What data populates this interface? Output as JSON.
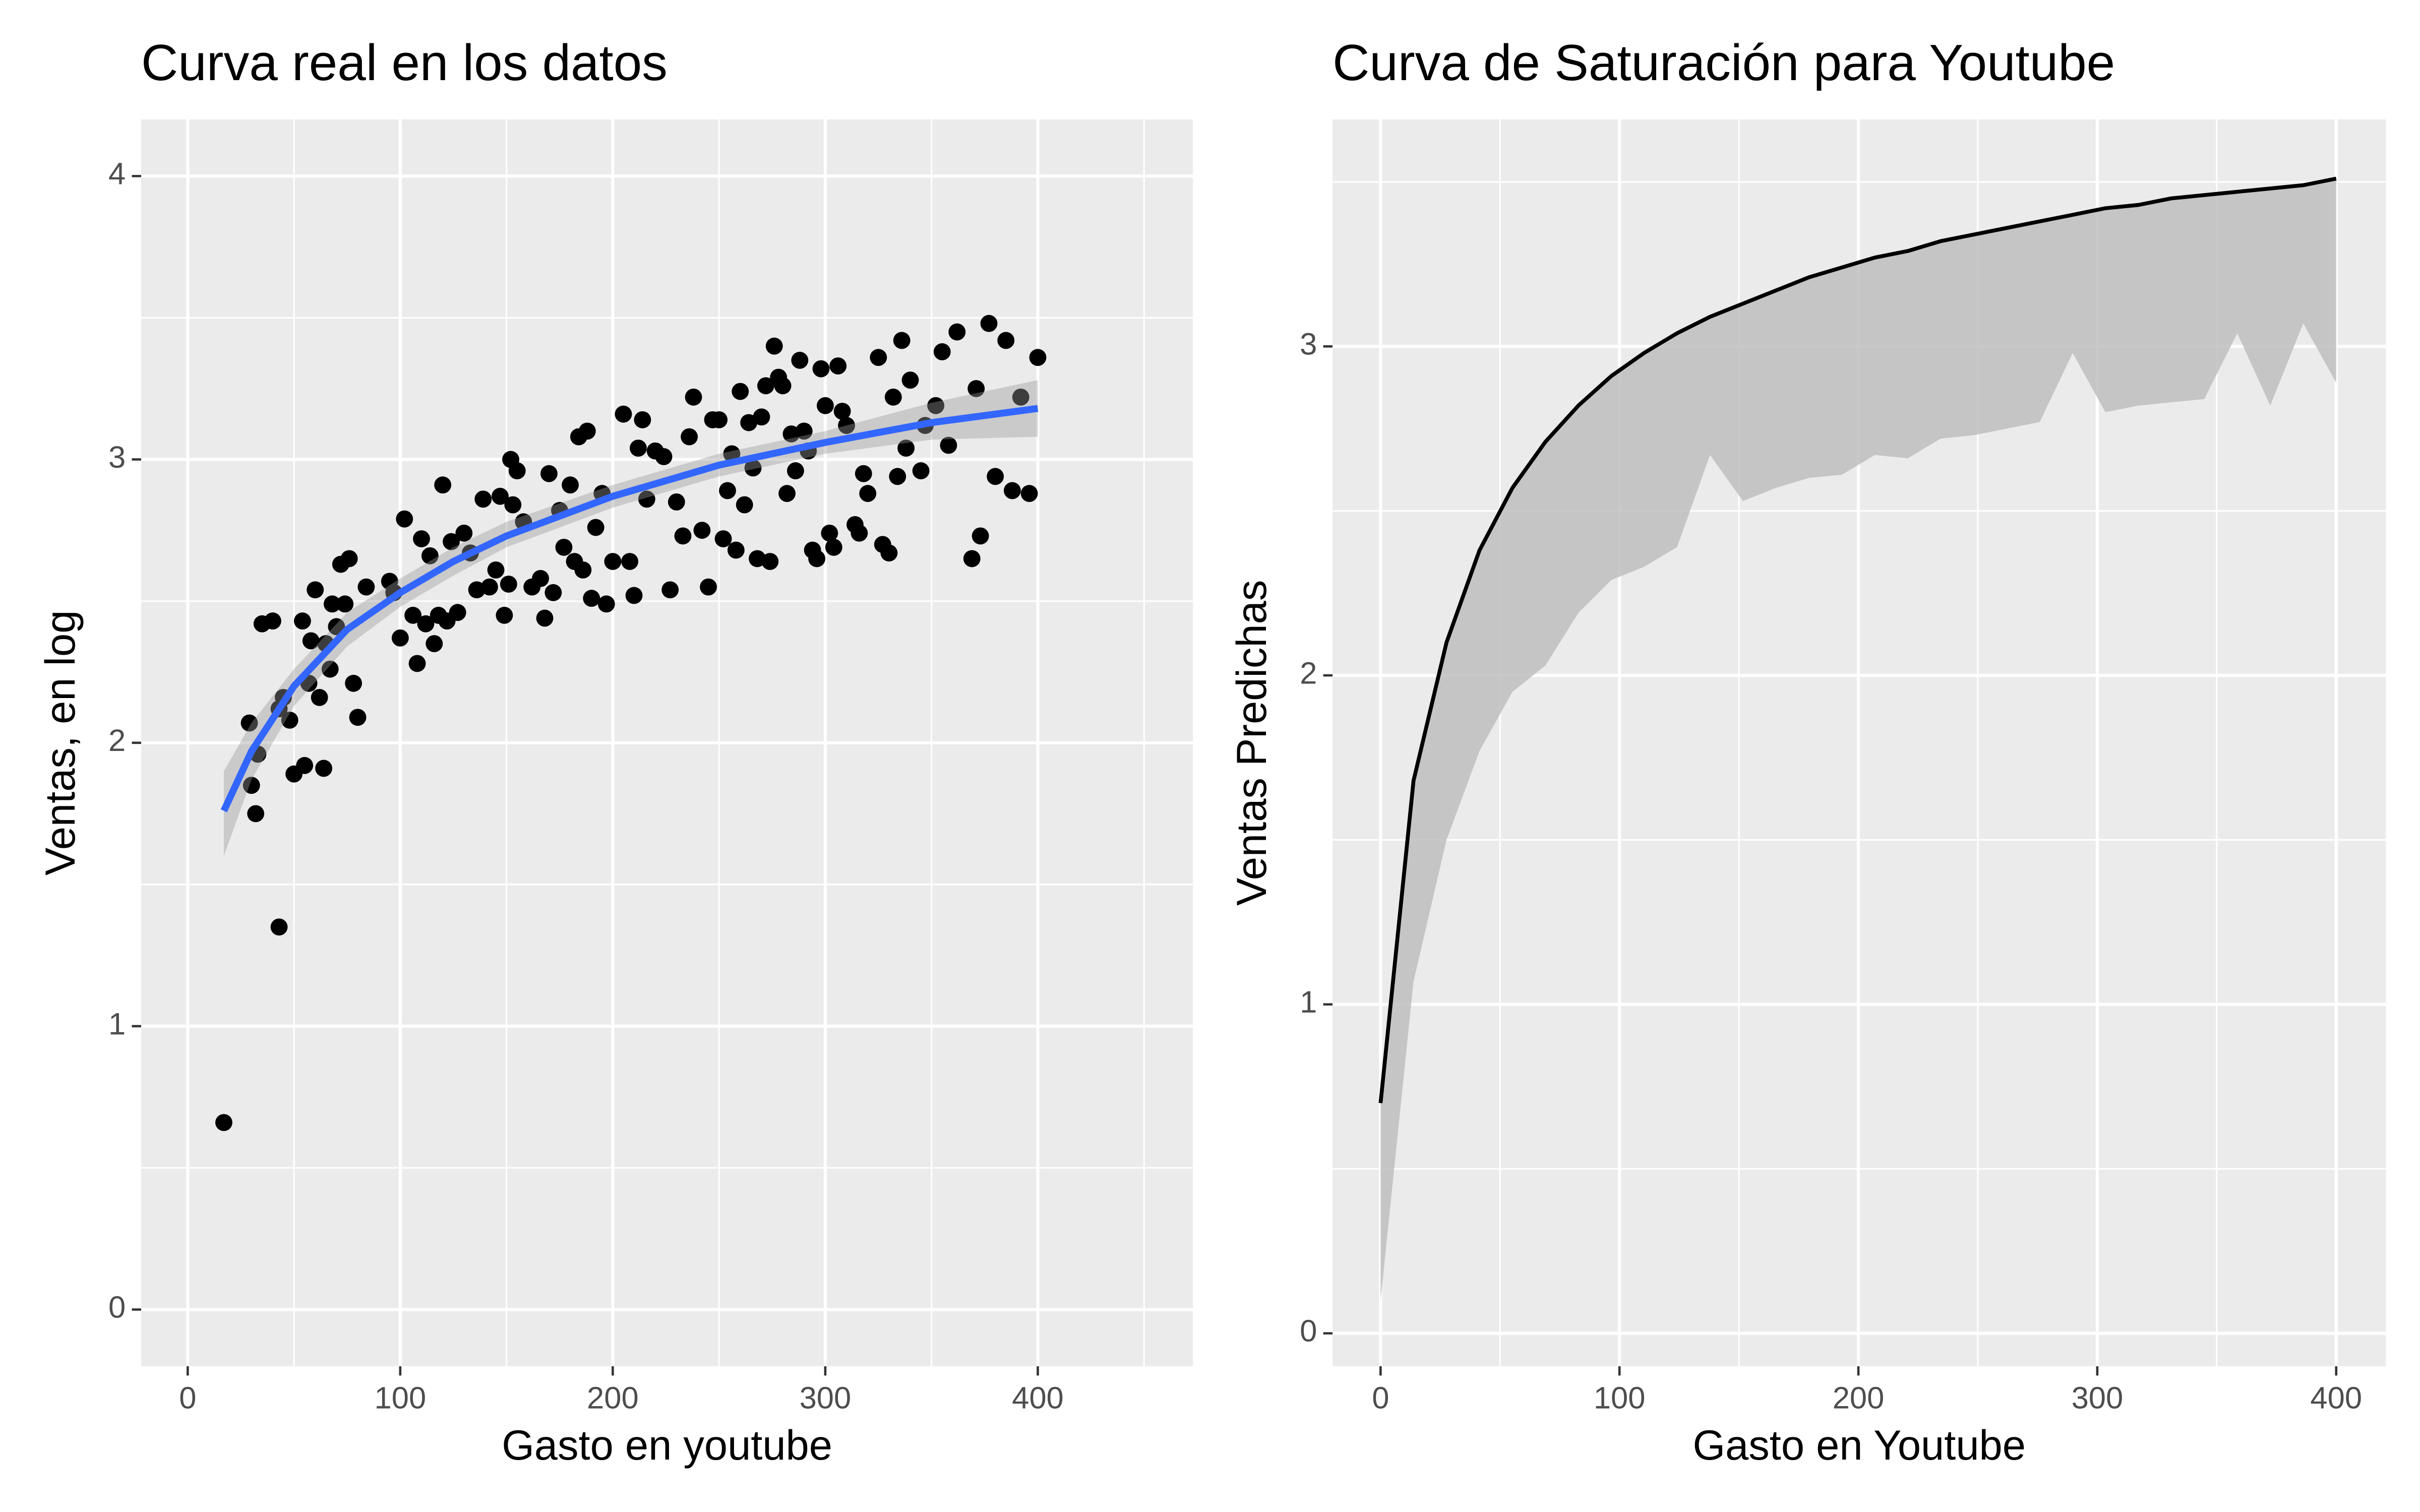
{
  "chart_data": [
    {
      "type": "scatter",
      "title": "Curva real en los datos",
      "x_label": "Gasto en youtube",
      "y_label": "Ventas, en log",
      "xlim": [
        -21.9,
        473
      ],
      "ylim": [
        -0.2,
        4.2
      ],
      "xticks": [
        0,
        100,
        200,
        300,
        400
      ],
      "yticks": [
        0,
        1,
        2,
        3,
        4
      ],
      "grid": true,
      "minor_grid": true,
      "point_color": "#000000",
      "x": [
        17,
        43,
        32,
        30,
        33,
        29,
        35,
        40,
        43,
        45,
        48,
        50,
        55,
        57,
        54,
        58,
        60,
        62,
        64,
        65,
        67,
        68,
        70,
        72,
        74,
        76,
        78,
        80,
        84,
        95,
        97,
        100,
        102,
        106,
        108,
        110,
        112,
        114,
        116,
        118,
        120,
        122,
        124,
        127,
        130,
        133,
        136,
        139,
        142,
        145,
        147,
        149,
        151,
        152,
        153,
        155,
        158,
        162,
        166,
        168,
        170,
        172,
        175,
        177,
        180,
        182,
        184,
        186,
        188,
        190,
        192,
        195,
        197,
        200,
        205,
        208,
        210,
        212,
        214,
        216,
        220,
        224,
        227,
        230,
        233,
        236,
        238,
        242,
        245,
        247,
        250,
        252,
        254,
        256,
        258,
        260,
        262,
        264,
        266,
        268,
        270,
        272,
        274,
        276,
        278,
        280,
        282,
        284,
        286,
        288,
        290,
        292,
        294,
        296,
        298,
        300,
        302,
        304,
        306,
        308,
        310,
        314,
        316,
        318,
        320,
        325,
        327,
        330,
        332,
        334,
        336,
        338,
        340,
        345,
        347,
        352,
        355,
        358,
        362,
        369,
        371,
        373,
        377,
        380,
        385,
        388,
        392,
        396,
        400
      ],
      "y": [
        0.66,
        1.35,
        1.75,
        1.85,
        1.96,
        2.07,
        2.42,
        2.43,
        2.12,
        2.16,
        2.08,
        1.89,
        1.92,
        2.21,
        2.43,
        2.36,
        2.54,
        2.16,
        1.91,
        2.35,
        2.26,
        2.49,
        2.41,
        2.63,
        2.49,
        2.65,
        2.21,
        2.09,
        2.55,
        2.57,
        2.53,
        2.37,
        2.79,
        2.45,
        2.28,
        2.72,
        2.42,
        2.66,
        2.35,
        2.45,
        2.91,
        2.43,
        2.71,
        2.46,
        2.74,
        2.67,
        2.54,
        2.86,
        2.55,
        2.61,
        2.87,
        2.45,
        2.56,
        3.0,
        2.84,
        2.96,
        2.78,
        2.55,
        2.58,
        2.44,
        2.95,
        2.53,
        2.82,
        2.69,
        2.91,
        2.64,
        3.08,
        2.61,
        3.1,
        2.51,
        2.76,
        2.88,
        2.49,
        2.64,
        3.16,
        2.64,
        2.52,
        3.04,
        3.14,
        2.86,
        3.03,
        3.01,
        2.54,
        2.85,
        2.73,
        3.08,
        3.22,
        2.75,
        2.55,
        3.14,
        3.14,
        2.72,
        2.89,
        3.02,
        2.68,
        3.24,
        2.84,
        3.13,
        2.97,
        2.65,
        3.15,
        3.26,
        2.64,
        3.4,
        3.29,
        3.26,
        2.88,
        3.09,
        2.96,
        3.35,
        3.1,
        3.03,
        2.68,
        2.65,
        3.32,
        3.19,
        2.74,
        2.69,
        3.33,
        3.17,
        3.12,
        2.77,
        2.74,
        2.95,
        2.88,
        3.36,
        2.7,
        2.67,
        3.22,
        2.94,
        3.42,
        3.04,
        3.28,
        2.96,
        3.12,
        3.19,
        3.38,
        3.05,
        3.45,
        2.65,
        3.25,
        2.73,
        3.48,
        2.94,
        3.42,
        2.89,
        3.22,
        2.88,
        3.36
      ],
      "fit": {
        "color": "#3366ff",
        "band_color": "#999999",
        "x": [
          17,
          30,
          50,
          75,
          100,
          125,
          150,
          200,
          250,
          300,
          350,
          400
        ],
        "y": [
          1.76,
          1.97,
          2.2,
          2.4,
          2.53,
          2.64,
          2.73,
          2.87,
          2.98,
          3.06,
          3.13,
          3.18
        ],
        "lower": [
          1.6,
          1.87,
          2.13,
          2.34,
          2.48,
          2.59,
          2.69,
          2.83,
          2.94,
          3.02,
          3.07,
          3.08
        ],
        "upper": [
          1.9,
          2.07,
          2.26,
          2.46,
          2.58,
          2.69,
          2.78,
          2.91,
          3.02,
          3.1,
          3.2,
          3.28
        ]
      }
    },
    {
      "type": "line",
      "title": "Curva de Saturación para Youtube",
      "x_label": "Gasto en Youtube",
      "y_label": "Ventas Predichas",
      "xlim": [
        -20.1,
        420.8
      ],
      "ylim": [
        -0.1,
        3.69
      ],
      "xticks": [
        0,
        100,
        200,
        300,
        400
      ],
      "yticks": [
        0,
        1,
        2,
        3
      ],
      "grid": true,
      "minor_grid": true,
      "color": "#000000",
      "band_color": "#bebebe",
      "x": [
        0,
        13.8,
        27.6,
        41.4,
        55.2,
        69,
        82.8,
        96.6,
        110.3,
        124.1,
        137.9,
        151.7,
        165.5,
        179.3,
        193.1,
        206.9,
        220.7,
        234.5,
        248.3,
        262.1,
        275.9,
        289.7,
        303.4,
        317.2,
        331,
        344.8,
        358.6,
        372.4,
        386.2,
        400
      ],
      "values": [
        0.7,
        1.68,
        2.1,
        2.38,
        2.57,
        2.71,
        2.82,
        2.91,
        2.98,
        3.04,
        3.09,
        3.13,
        3.17,
        3.21,
        3.24,
        3.27,
        3.29,
        3.32,
        3.34,
        3.36,
        3.38,
        3.4,
        3.42,
        3.43,
        3.45,
        3.46,
        3.47,
        3.48,
        3.49,
        3.51
      ],
      "lower": [
        0.1,
        1.07,
        1.5,
        1.77,
        1.95,
        2.03,
        2.19,
        2.29,
        2.33,
        2.39,
        2.67,
        2.53,
        2.57,
        2.6,
        2.61,
        2.67,
        2.66,
        2.72,
        2.73,
        2.75,
        2.77,
        2.98,
        2.8,
        2.82,
        2.83,
        2.84,
        3.04,
        2.82,
        3.07,
        2.89
      ]
    }
  ]
}
